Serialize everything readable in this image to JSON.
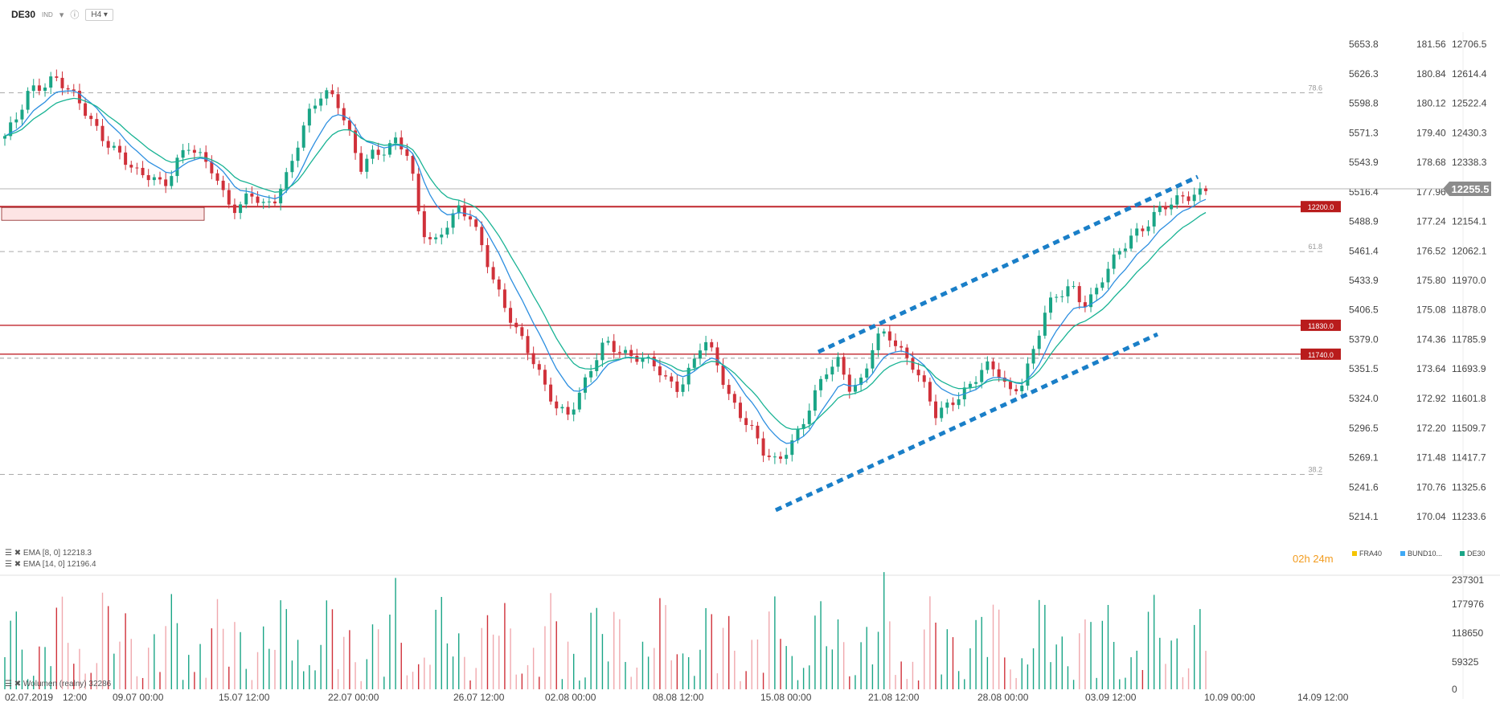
{
  "toolbar": {
    "symbol": "DE30",
    "badge": "IND",
    "timeframe": "H4",
    "info_icon": "info-icon",
    "dropdown_icon": "chevron-down-icon"
  },
  "indicators": {
    "ema8": "EMA [8, 0] 12218.3",
    "ema14": "EMA [14, 0] 12196.4",
    "volume": "Wolumen (realny) 32286"
  },
  "timer": {
    "hours": "02",
    "h": "h",
    "minutes": "24",
    "m": "m"
  },
  "instruments": [
    {
      "name": "FRA40",
      "color": "#f5c400"
    },
    {
      "name": "BUND10...",
      "color": "#3fa9f5"
    },
    {
      "name": "DE30",
      "color": "#1aa586"
    }
  ],
  "colors": {
    "up": "#1aa586",
    "down": "#d0313a",
    "ema_fast": "#2d8fe0",
    "ema_slow": "#19b394",
    "level": "#c0262d",
    "channel": "#1a7fc8",
    "current": "#9a9a9a"
  },
  "chart_data": {
    "type": "candlestick",
    "x_ticks": [
      "02.07.2019",
      "12:00",
      "09.07 00:00",
      "15.07 12:00",
      "22.07 00:00",
      "26.07 12:00",
      "02.08 00:00",
      "08.08 12:00",
      "15.08 00:00",
      "21.08 12:00",
      "28.08 00:00",
      "03.09 12:00",
      "10.09 00:00",
      "14.09 12:00"
    ],
    "axis1_ticks": [
      "5653.8",
      "5626.3",
      "5598.8",
      "5571.3",
      "5543.9",
      "5516.4",
      "5488.9",
      "5461.4",
      "5433.9",
      "5406.5",
      "5379.0",
      "5351.5",
      "5324.0",
      "5296.5",
      "5269.1",
      "5241.6",
      "5214.1"
    ],
    "axis2_ticks": [
      "181.56",
      "180.84",
      "180.12",
      "179.40",
      "178.68",
      "177.96",
      "177.24",
      "176.52",
      "175.80",
      "175.08",
      "174.36",
      "173.64",
      "172.92",
      "172.20",
      "171.48",
      "170.76",
      "170.04"
    ],
    "price_ticks": [
      12706.5,
      12614.4,
      12522.4,
      12430.3,
      12338.3,
      12246.2,
      12154.1,
      12062.1,
      11970.0,
      11878.0,
      11785.9,
      11693.9,
      11601.8,
      11509.7,
      11417.7,
      11325.6,
      11233.6
    ],
    "current_price": "12255.5",
    "levels": [
      "12200.0",
      "11830.0",
      "11740.0"
    ],
    "fib_levels": [
      {
        "label": "78.6",
        "price": 12555
      },
      {
        "label": "61.8",
        "price": 12060
      },
      {
        "label": "38.2",
        "price": 11365
      }
    ],
    "closes_path": [
      12420,
      12470,
      12560,
      12580,
      12610,
      12570,
      12520,
      12470,
      12420,
      12380,
      12330,
      12290,
      12300,
      12270,
      12340,
      12380,
      12350,
      12320,
      12230,
      12180,
      12240,
      12200,
      12230,
      12300,
      12400,
      12500,
      12560,
      12550,
      12440,
      12310,
      12360,
      12380,
      12420,
      12350,
      12120,
      12080,
      12150,
      12200,
      12160,
      12060,
      11960,
      11880,
      11800,
      11720,
      11640,
      11580,
      11560,
      11620,
      11700,
      11780,
      11760,
      11740,
      11720,
      11700,
      11660,
      11640,
      11700,
      11780,
      11720,
      11620,
      11560,
      11500,
      11420,
      11400,
      11460,
      11520,
      11600,
      11680,
      11720,
      11640,
      11660,
      11780,
      11800,
      11760,
      11720,
      11640,
      11540,
      11580,
      11620,
      11660,
      11700,
      11680,
      11620,
      11660,
      11760,
      11880,
      11920,
      11960,
      11900,
      11930,
      12000,
      12060,
      12120,
      12140,
      12180,
      12200,
      12230,
      12245,
      12255
    ],
    "volume_axis": [
      "237301",
      "177976",
      "118650",
      "59325",
      "0"
    ]
  }
}
